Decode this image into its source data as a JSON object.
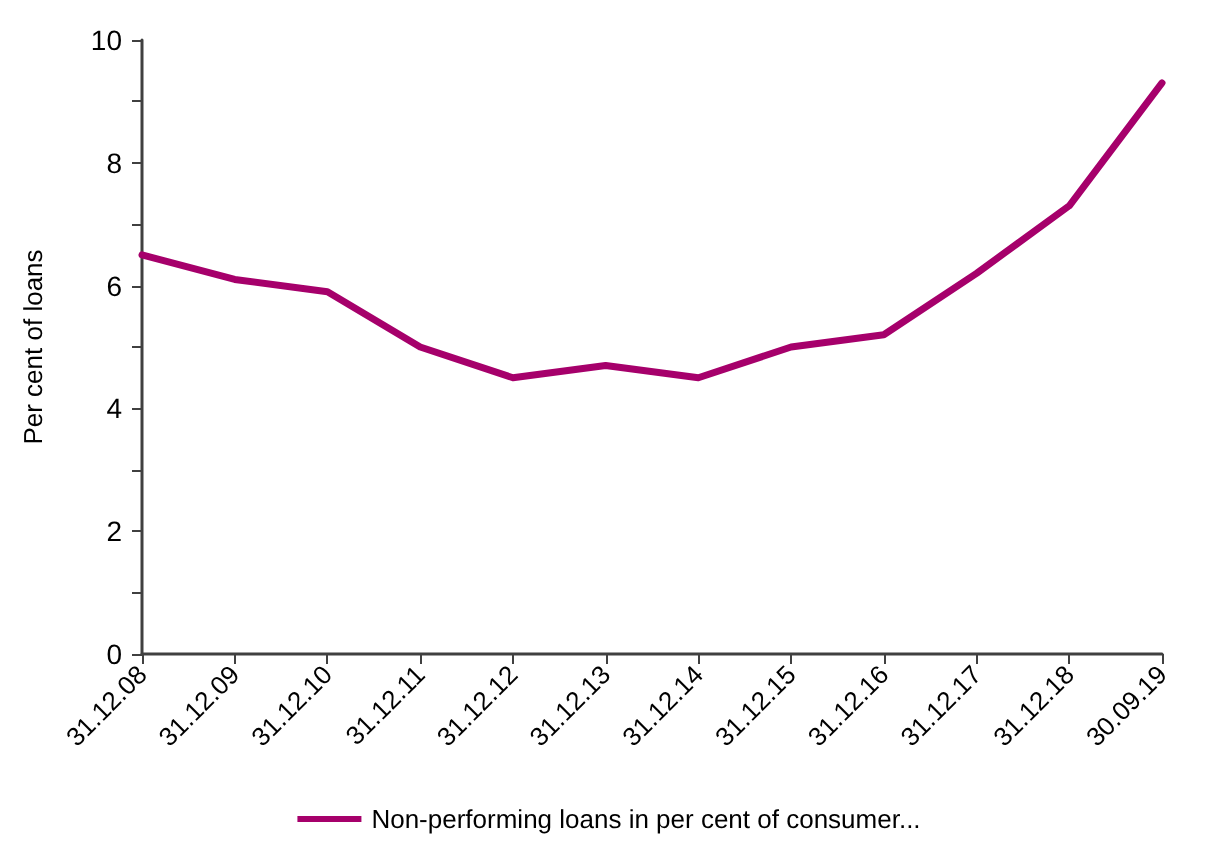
{
  "chart_data": {
    "type": "line",
    "ylabel": "Per cent of loans",
    "categories": [
      "31.12.08",
      "31.12.09",
      "31.12.10",
      "31.12.11",
      "31.12.12",
      "31.12.13",
      "31.12.14",
      "31.12.15",
      "31.12.16",
      "31.12.17",
      "31.12.18",
      "30.09.19"
    ],
    "series": [
      {
        "name": "Non-performing loans in per cent of consumer...",
        "color": "#a6006b",
        "values": [
          6.5,
          6.1,
          5.9,
          5.0,
          4.5,
          4.7,
          4.5,
          5.0,
          5.2,
          6.2,
          7.3,
          9.3
        ]
      }
    ],
    "ylim": [
      0,
      10
    ],
    "yticks": [
      0,
      {
        "value": 1,
        "label": null
      },
      2,
      {
        "value": 3,
        "label": null
      },
      4,
      {
        "value": 5,
        "label": null
      },
      6,
      {
        "value": 7,
        "label": null
      },
      8,
      {
        "value": 9,
        "label": null
      },
      10
    ],
    "grid": false,
    "legend": "bottom",
    "marker": "none",
    "line_style": "solid"
  }
}
